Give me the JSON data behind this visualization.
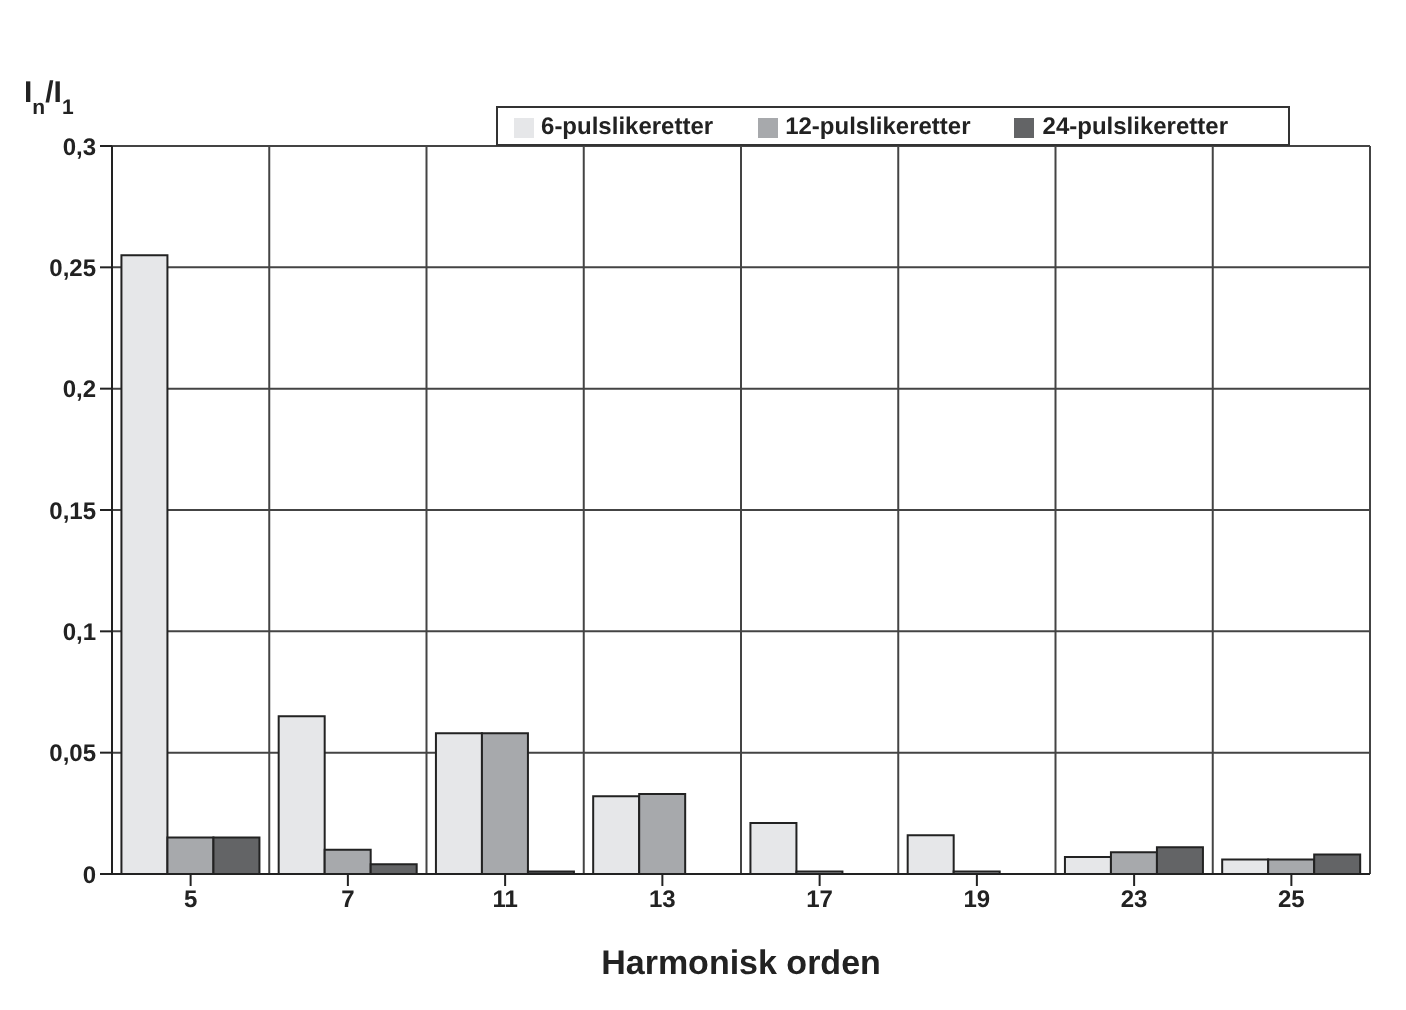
{
  "chart_data": {
    "type": "bar",
    "xlabel": "Harmonisk orden",
    "ylabel": "I$_{n}$/I$_{1}$",
    "categories": [
      "5",
      "7",
      "11",
      "13",
      "17",
      "19",
      "23",
      "25"
    ],
    "series": [
      {
        "name": "6-pulslikeretter",
        "color": "#e6e7e9",
        "values": [
          0.255,
          0.065,
          0.058,
          0.032,
          0.021,
          0.016,
          0.007,
          0.006
        ]
      },
      {
        "name": "12-pulslikeretter",
        "color": "#a7a9ac",
        "values": [
          0.015,
          0.01,
          0.058,
          0.033,
          0.001,
          0.001,
          0.009,
          0.006
        ]
      },
      {
        "name": "24-pulslikeretter",
        "color": "#636466",
        "values": [
          0.015,
          0.004,
          0.001,
          0,
          0,
          0,
          0.011,
          0.008
        ]
      }
    ],
    "ylim": [
      0,
      0.3
    ],
    "yticks": [
      0,
      {
        "value": 0.05,
        "label": "0,05"
      },
      {
        "value": 0.1,
        "label": "0,1"
      },
      {
        "value": 0.15,
        "label": "0,15"
      },
      {
        "value": 0.2,
        "label": "0,2"
      },
      {
        "value": 0.25,
        "label": "0,25"
      },
      {
        "value": 0.3,
        "label": "0,3"
      }
    ],
    "grid": true,
    "legend": "top right"
  }
}
